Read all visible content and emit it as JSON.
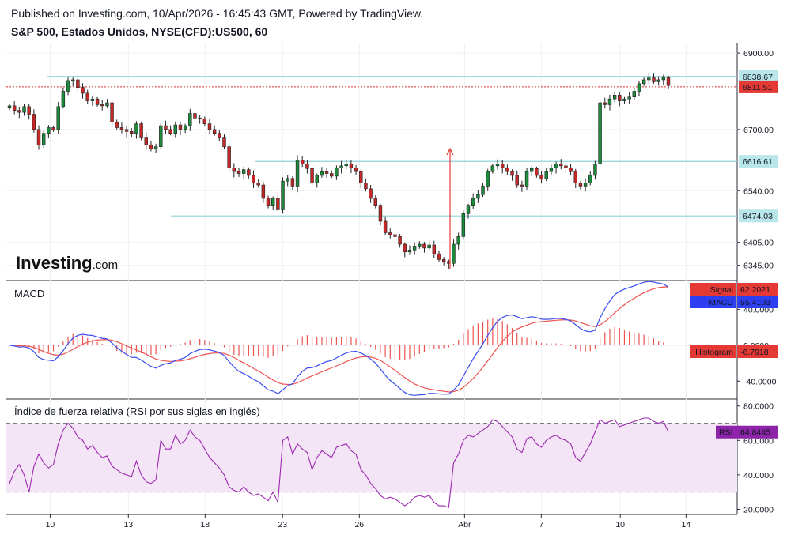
{
  "header": {
    "published": "Published on Investing.com, 10/Apr/2026 - 16:45:43 GMT, Powered by TradingView.",
    "symbol": "S&P 500, Estados Unidos, NYSE(CFD):US500, 60"
  },
  "watermark": {
    "brand": "Investing",
    "suffix": ".com"
  },
  "colors": {
    "up": "#26a69a",
    "down": "#ef5350",
    "candle_up": "#1b8a3a",
    "candle_down": "#c62828",
    "hline": "#8fd3d9",
    "price_line": "#d32f2f",
    "macd": "#3b4cf0",
    "signal": "#ef5350",
    "histogram": "#ef5350",
    "rsi": "#9c27b0",
    "rsi_band": "#f3e5f5"
  },
  "chart_data": [
    {
      "type": "candlestick",
      "title": "S&P 500, Estados Unidos, NYSE(CFD):US500, 60",
      "ylim": [
        6305,
        6925
      ],
      "y_ticks": [
        "6900.00",
        "6700.00",
        "6540.00",
        "6405.00",
        "6345.00"
      ],
      "y_tick_values": [
        6900,
        6700,
        6540,
        6405,
        6345
      ],
      "x_labels": [
        "10",
        "13",
        "18",
        "23",
        "26",
        "Abr",
        "7",
        "10",
        "14"
      ],
      "x_label_positions": [
        0.06,
        0.167,
        0.272,
        0.378,
        0.483,
        0.627,
        0.732,
        0.84,
        0.93
      ],
      "horizontal_levels": [
        {
          "label": "6838.67",
          "value": 6838.67
        },
        {
          "label": "6616.61",
          "value": 6616.61
        },
        {
          "label": "6474.03",
          "value": 6474.03
        }
      ],
      "current_price": {
        "label": "6811.51",
        "value": 6811.51
      },
      "closes": [
        6762,
        6750,
        6745,
        6760,
        6740,
        6700,
        6660,
        6690,
        6705,
        6700,
        6760,
        6800,
        6828,
        6830,
        6810,
        6795,
        6775,
        6780,
        6765,
        6762,
        6770,
        6720,
        6705,
        6700,
        6695,
        6690,
        6715,
        6680,
        6660,
        6650,
        6655,
        6710,
        6700,
        6690,
        6712,
        6700,
        6710,
        6742,
        6730,
        6728,
        6715,
        6700,
        6690,
        6680,
        6655,
        6600,
        6590,
        6585,
        6595,
        6580,
        6560,
        6555,
        6520,
        6500,
        6520,
        6490,
        6565,
        6572,
        6550,
        6620,
        6610,
        6598,
        6560,
        6580,
        6590,
        6585,
        6578,
        6600,
        6605,
        6610,
        6600,
        6590,
        6560,
        6545,
        6520,
        6500,
        6460,
        6430,
        6425,
        6420,
        6400,
        6380,
        6385,
        6395,
        6400,
        6390,
        6398,
        6375,
        6360,
        6355,
        6350,
        6400,
        6420,
        6480,
        6500,
        6520,
        6530,
        6550,
        6590,
        6605,
        6610,
        6600,
        6590,
        6580,
        6555,
        6550,
        6590,
        6598,
        6580,
        6570,
        6590,
        6600,
        6610,
        6605,
        6600,
        6590,
        6560,
        6550,
        6560,
        6580,
        6610,
        6770,
        6765,
        6780,
        6790,
        6775,
        6780,
        6785,
        6800,
        6820,
        6830,
        6835,
        6825,
        6830,
        6836,
        6815
      ],
      "rsi_values": [
        35,
        42,
        46,
        40,
        30,
        45,
        52,
        47,
        44,
        46,
        58,
        66,
        70,
        67,
        62,
        60,
        55,
        57,
        53,
        50,
        51,
        45,
        43,
        41,
        40,
        39,
        48,
        40,
        36,
        35,
        37,
        60,
        55,
        55,
        63,
        58,
        60,
        66,
        62,
        60,
        55,
        50,
        47,
        44,
        40,
        33,
        31,
        30,
        33,
        30,
        28,
        29,
        27,
        25,
        30,
        24,
        60,
        62,
        52,
        58,
        55,
        53,
        43,
        50,
        54,
        52,
        50,
        56,
        57,
        58,
        54,
        52,
        43,
        40,
        35,
        32,
        28,
        26,
        27,
        26,
        24,
        22,
        24,
        27,
        28,
        27,
        28,
        24,
        22,
        22,
        21,
        47,
        52,
        60,
        63,
        62,
        64,
        66,
        68,
        72,
        71,
        68,
        65,
        62,
        55,
        53,
        61,
        62,
        58,
        56,
        60,
        62,
        63,
        61,
        60,
        58,
        50,
        48,
        53,
        58,
        65,
        72,
        70,
        71,
        72,
        68,
        69,
        70,
        71,
        72,
        73,
        73,
        71,
        70,
        71,
        65
      ],
      "rsi_label": "Índice de fuerza relativa (RSI por sus siglas en inglés)",
      "rsi_value": {
        "label": "RSI",
        "value": "64.8445"
      },
      "rsi_ticks": [
        "80.0000",
        "60.0000",
        "40.0000",
        "20.0000"
      ],
      "rsi_tick_values": [
        80,
        60,
        40,
        20
      ],
      "rsi_levels": [
        70,
        30
      ],
      "macd_label": "MACD",
      "macd_ticks": [
        "40.0000",
        "0.0000",
        "-40.0000"
      ],
      "macd_tick_values": [
        40,
        0,
        -40
      ],
      "macd_signal": {
        "label": "Signal",
        "value": "62.2021"
      },
      "macd_macd": {
        "label": "MACD",
        "value": "55.4103"
      },
      "macd_histogram": {
        "label": "Histogram",
        "value": "-6.7918"
      }
    }
  ]
}
